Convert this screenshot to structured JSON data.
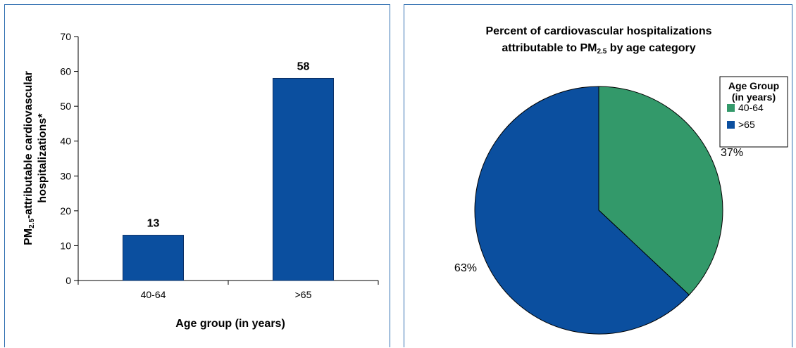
{
  "chart_data": [
    {
      "type": "bar",
      "categories": [
        "40-64",
        ">65"
      ],
      "values": [
        13,
        58
      ],
      "data_labels": [
        "13",
        "58"
      ],
      "xlabel": "Age group (in years)",
      "ylabel": {
        "line1_pre": "PM",
        "line1_sub": "2.5",
        "line1_post": "-attributable cardiovascular",
        "line2": "hospitalizations*"
      },
      "ylim": [
        0,
        70
      ],
      "yticks": [
        0,
        10,
        20,
        30,
        40,
        50,
        60,
        70
      ],
      "bar_color": "#0b4f9f",
      "grid": false
    },
    {
      "type": "pie",
      "title": {
        "line1": "Percent of cardiovascular hospitalizations",
        "line2_pre": "attributable to PM",
        "line2_sub": "2.5",
        "line2_post": " by age category"
      },
      "slices": [
        {
          "label": "40-64",
          "value": 37,
          "percent_label": "37%",
          "color": "#33996a"
        },
        {
          "label": ">65",
          "value": 63,
          "percent_label": "63%",
          "color": "#0b4f9f"
        }
      ],
      "legend": {
        "title_line1": "Age Group",
        "title_line2": "(in years)",
        "placement": "top-right"
      }
    }
  ]
}
